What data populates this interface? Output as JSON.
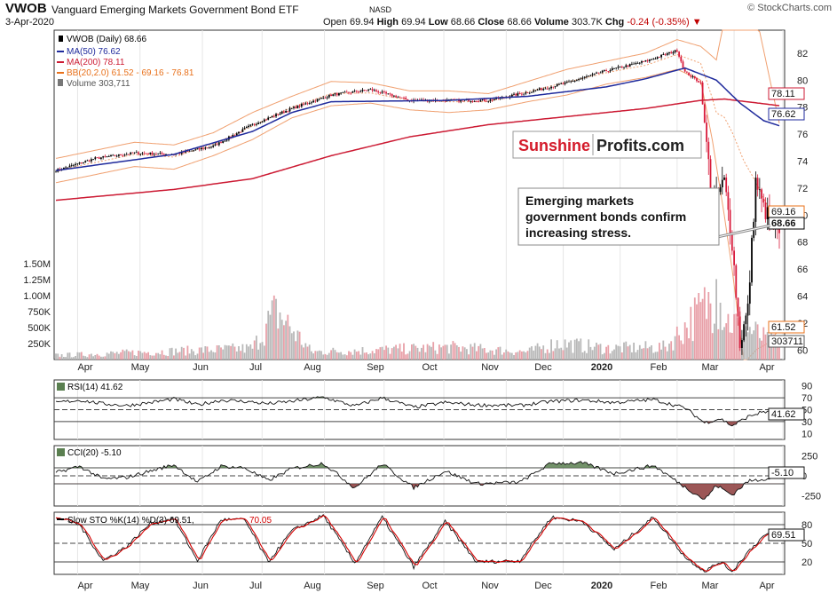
{
  "header": {
    "ticker": "VWOB",
    "name": "Vanguard Emerging Markets Government Bond ETF",
    "exchange": "NASD",
    "credit": "© StockCharts.com",
    "date": "3-Apr-2020",
    "open_label": "Open",
    "open": "69.94",
    "high_label": "High",
    "high": "69.94",
    "low_label": "Low",
    "low": "68.66",
    "close_label": "Close",
    "close": "68.66",
    "volume_label": "Volume",
    "volume": "303.7K",
    "chg_label": "Chg",
    "chg": "-0.24 (-0.35%)"
  },
  "legend": {
    "price": "VWOB (Daily) 68.66",
    "ma50": "MA(50) 76.62",
    "ma200": "MA(200) 78.11",
    "bb": "BB(20,2.0) 61.52 - 69.16 - 76.81",
    "volume": "Volume 303,711",
    "rsi": "RSI(14) 41.62",
    "cci": "CCI(20) -5.10",
    "sto_prefix": "Slow STO %K(14) %D(3) 69.51,",
    "sto_d": "70.05"
  },
  "watermark": {
    "brand_red": "Sunshine",
    "brand_dark": "Profits.com"
  },
  "annotation": "Emerging markets government bonds confirm increasing stress.",
  "colors": {
    "up": "#000000",
    "down": "#d81b3b",
    "ma50": "#1f2a9c",
    "ma200": "#cc1a33",
    "bb": "#f0a070",
    "volume_down": "#e8a0a8",
    "volume_up": "#b8b8b8",
    "osc_fill": "#5a7f50",
    "osc_fill_neg": "#8b3a3a",
    "sto_k": "#000000",
    "sto_d": "#d40000"
  },
  "chart_data": {
    "type": "line",
    "x_axis_labels": [
      "Apr",
      "May",
      "Jun",
      "Jul",
      "Aug",
      "Sep",
      "Oct",
      "Nov",
      "Dec",
      "2020",
      "Feb",
      "Mar",
      "Apr"
    ],
    "price_panel": {
      "y_ticks": [
        60,
        62,
        64,
        66,
        68,
        70,
        72,
        74,
        76,
        78,
        80,
        82
      ],
      "ylim": [
        59.3,
        83.7
      ],
      "last_value_tags": [
        {
          "label": "78.11",
          "series": "MA(200)"
        },
        {
          "label": "76.62",
          "series": "MA(50)"
        },
        {
          "label": "69.16",
          "series": "BB mid"
        },
        {
          "label": "68.66",
          "series": "Close"
        },
        {
          "label": "61.52",
          "series": "BB lower"
        }
      ],
      "close_knots": [
        [
          0,
          73.3
        ],
        [
          20,
          74.2
        ],
        [
          40,
          74.6
        ],
        [
          60,
          74.5
        ],
        [
          80,
          75.1
        ],
        [
          100,
          76.7
        ],
        [
          120,
          77.9
        ],
        [
          140,
          78.9
        ],
        [
          160,
          79.3
        ],
        [
          180,
          78.5
        ],
        [
          200,
          78.5
        ],
        [
          220,
          78.5
        ],
        [
          240,
          79.1
        ],
        [
          260,
          79.8
        ],
        [
          280,
          80.7
        ],
        [
          300,
          81.4
        ],
        [
          316,
          82.2
        ],
        [
          320,
          80.6
        ],
        [
          328,
          79.8
        ],
        [
          334,
          70.8
        ],
        [
          340,
          72.5
        ],
        [
          344,
          68.0
        ],
        [
          348,
          60.5
        ],
        [
          352,
          63.0
        ],
        [
          356,
          72.5
        ],
        [
          360,
          70.5
        ],
        [
          364,
          69.5
        ],
        [
          368,
          68.66
        ]
      ],
      "ma50_knots": [
        [
          0,
          73.3
        ],
        [
          60,
          74.5
        ],
        [
          100,
          76.2
        ],
        [
          120,
          77.6
        ],
        [
          140,
          78.4
        ],
        [
          200,
          78.5
        ],
        [
          240,
          78.8
        ],
        [
          280,
          79.5
        ],
        [
          300,
          80.1
        ],
        [
          320,
          80.9
        ],
        [
          336,
          80.0
        ],
        [
          348,
          78.3
        ],
        [
          360,
          77.0
        ],
        [
          368,
          76.62
        ]
      ],
      "ma200_knots": [
        [
          0,
          71.1
        ],
        [
          60,
          71.9
        ],
        [
          100,
          72.7
        ],
        [
          140,
          74.4
        ],
        [
          180,
          75.8
        ],
        [
          220,
          76.7
        ],
        [
          260,
          77.3
        ],
        [
          300,
          77.9
        ],
        [
          328,
          78.5
        ],
        [
          340,
          78.6
        ],
        [
          368,
          78.11
        ]
      ],
      "bb_upper_knots": [
        [
          0,
          74.2
        ],
        [
          40,
          75.4
        ],
        [
          60,
          75.2
        ],
        [
          80,
          76.1
        ],
        [
          100,
          77.6
        ],
        [
          120,
          78.8
        ],
        [
          140,
          79.9
        ],
        [
          160,
          79.8
        ],
        [
          180,
          79.2
        ],
        [
          200,
          79.2
        ],
        [
          220,
          79.0
        ],
        [
          240,
          79.9
        ],
        [
          260,
          80.8
        ],
        [
          280,
          81.4
        ],
        [
          300,
          82.0
        ],
        [
          316,
          83.0
        ],
        [
          328,
          82.5
        ],
        [
          336,
          81.5
        ],
        [
          340,
          84.5
        ],
        [
          350,
          89.0
        ],
        [
          368,
          76.81
        ]
      ],
      "bb_lower_knots": [
        [
          0,
          72.4
        ],
        [
          40,
          73.6
        ],
        [
          60,
          73.4
        ],
        [
          80,
          74.4
        ],
        [
          100,
          75.6
        ],
        [
          120,
          77.2
        ],
        [
          140,
          78.1
        ],
        [
          160,
          78.3
        ],
        [
          180,
          77.8
        ],
        [
          200,
          77.6
        ],
        [
          220,
          77.8
        ],
        [
          240,
          78.4
        ],
        [
          260,
          78.9
        ],
        [
          280,
          79.7
        ],
        [
          300,
          80.2
        ],
        [
          316,
          80.8
        ],
        [
          328,
          80.0
        ],
        [
          334,
          75.5
        ],
        [
          340,
          70.0
        ],
        [
          344,
          66.0
        ],
        [
          350,
          59.0
        ],
        [
          356,
          60.0
        ],
        [
          362,
          60.5
        ],
        [
          368,
          61.52
        ]
      ]
    },
    "volume_panel": {
      "y_ticks": [
        "250K",
        "500K",
        "750K",
        "1.00M",
        "1.25M",
        "1.50M"
      ],
      "last": 303711,
      "spike_knots": [
        [
          0,
          80
        ],
        [
          100,
          220
        ],
        [
          112,
          950
        ],
        [
          130,
          150
        ],
        [
          160,
          180
        ],
        [
          200,
          240
        ],
        [
          240,
          150
        ],
        [
          255,
          320
        ],
        [
          280,
          220
        ],
        [
          310,
          240
        ],
        [
          336,
          1260
        ],
        [
          342,
          760
        ],
        [
          350,
          640
        ],
        [
          356,
          520
        ],
        [
          362,
          360
        ],
        [
          368,
          303.7
        ]
      ]
    },
    "rsi_panel": {
      "y_ticks": [
        10,
        30,
        50,
        70,
        90
      ],
      "ylim": [
        0,
        100
      ],
      "last": 41.62,
      "knots": [
        [
          0,
          62
        ],
        [
          12,
          66
        ],
        [
          24,
          60
        ],
        [
          36,
          57
        ],
        [
          48,
          62
        ],
        [
          60,
          68
        ],
        [
          72,
          58
        ],
        [
          84,
          66
        ],
        [
          96,
          64
        ],
        [
          108,
          60
        ],
        [
          120,
          64
        ],
        [
          136,
          71
        ],
        [
          152,
          56
        ],
        [
          166,
          70
        ],
        [
          182,
          54
        ],
        [
          198,
          62
        ],
        [
          214,
          58
        ],
        [
          236,
          57
        ],
        [
          252,
          64
        ],
        [
          268,
          66
        ],
        [
          284,
          62
        ],
        [
          304,
          67
        ],
        [
          320,
          53
        ],
        [
          330,
          28
        ],
        [
          338,
          35
        ],
        [
          344,
          23
        ],
        [
          352,
          38
        ],
        [
          360,
          47
        ],
        [
          368,
          41.62
        ]
      ]
    },
    "cci_panel": {
      "y_ticks": [
        -250,
        0,
        250
      ],
      "ylim": [
        -380,
        380
      ],
      "last": -5.1,
      "knots": [
        [
          0,
          40
        ],
        [
          12,
          120
        ],
        [
          24,
          -40
        ],
        [
          36,
          -20
        ],
        [
          48,
          60
        ],
        [
          60,
          140
        ],
        [
          72,
          -80
        ],
        [
          84,
          120
        ],
        [
          96,
          100
        ],
        [
          108,
          -60
        ],
        [
          120,
          90
        ],
        [
          136,
          160
        ],
        [
          152,
          -150
        ],
        [
          166,
          150
        ],
        [
          182,
          -150
        ],
        [
          198,
          60
        ],
        [
          214,
          -100
        ],
        [
          236,
          -80
        ],
        [
          252,
          160
        ],
        [
          268,
          160
        ],
        [
          284,
          30
        ],
        [
          304,
          130
        ],
        [
          320,
          -140
        ],
        [
          330,
          -300
        ],
        [
          336,
          -120
        ],
        [
          344,
          -240
        ],
        [
          352,
          -70
        ],
        [
          360,
          -40
        ],
        [
          368,
          -5.1
        ]
      ]
    },
    "sto_panel": {
      "y_ticks": [
        20,
        50,
        80
      ],
      "ylim": [
        0,
        100
      ],
      "last_k": 69.51,
      "last_d": 70.05,
      "knots": [
        [
          0,
          92
        ],
        [
          12,
          80
        ],
        [
          24,
          22
        ],
        [
          36,
          45
        ],
        [
          48,
          82
        ],
        [
          60,
          90
        ],
        [
          72,
          22
        ],
        [
          84,
          88
        ],
        [
          96,
          88
        ],
        [
          108,
          20
        ],
        [
          120,
          70
        ],
        [
          136,
          95
        ],
        [
          152,
          18
        ],
        [
          166,
          92
        ],
        [
          182,
          12
        ],
        [
          198,
          85
        ],
        [
          214,
          20
        ],
        [
          236,
          22
        ],
        [
          252,
          92
        ],
        [
          268,
          85
        ],
        [
          284,
          40
        ],
        [
          304,
          92
        ],
        [
          320,
          28
        ],
        [
          330,
          5
        ],
        [
          338,
          20
        ],
        [
          344,
          5
        ],
        [
          352,
          36
        ],
        [
          360,
          62
        ],
        [
          368,
          69.51
        ]
      ]
    }
  }
}
